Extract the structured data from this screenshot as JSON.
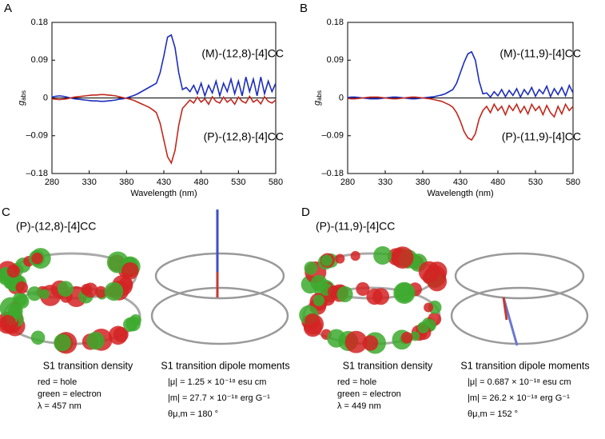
{
  "chart_data": [
    {
      "type": "line",
      "label": "A",
      "xlabel": "Wavelength (nm)",
      "ylabel": "g",
      "ylabel_sub": "abs",
      "xlim": [
        280,
        580
      ],
      "ylim": [
        -0.18,
        0.18
      ],
      "xticks": [
        280,
        330,
        380,
        430,
        480,
        530,
        580
      ],
      "yticks": [
        {
          "value": -0.18,
          "label": "–0.18"
        },
        {
          "value": -0.09,
          "label": "–0.09"
        },
        0,
        0.09,
        0.18
      ],
      "x": [
        280,
        285,
        290,
        295,
        300,
        305,
        310,
        315,
        320,
        325,
        330,
        335,
        340,
        345,
        350,
        355,
        360,
        365,
        370,
        375,
        380,
        385,
        390,
        395,
        400,
        405,
        410,
        415,
        420,
        425,
        430,
        435,
        440,
        445,
        450,
        455,
        460,
        465,
        470,
        475,
        480,
        485,
        490,
        495,
        500,
        505,
        510,
        515,
        520,
        525,
        530,
        535,
        540,
        545,
        550,
        555,
        560,
        565,
        570,
        575,
        580
      ],
      "series": [
        {
          "name": "(M)-(12,8)-[4]CC",
          "color": "#1c2dbd",
          "values": [
            0.002,
            0.004,
            0.005,
            0.004,
            0.002,
            0,
            -0.002,
            -0.003,
            -0.004,
            -0.005,
            -0.006,
            -0.007,
            -0.007,
            -0.008,
            -0.008,
            -0.007,
            -0.006,
            -0.005,
            -0.003,
            -0.002,
            0,
            0.003,
            0.006,
            0.01,
            0.015,
            0.02,
            0.025,
            0.03,
            0.035,
            0.06,
            0.1,
            0.145,
            0.15,
            0.12,
            0.06,
            0.02,
            0.025,
            0.015,
            0.03,
            0.01,
            0.035,
            0.005,
            0.03,
            0.012,
            0.04,
            0.005,
            0.035,
            0.015,
            0.045,
            0.01,
            0.04,
            0.005,
            0.05,
            0.015,
            0.045,
            0.005,
            0.05,
            0.01,
            0.04,
            0.015,
            0.035
          ]
        },
        {
          "name": "(P)-(12,8)-[4]CC",
          "color": "#c1271b",
          "values": [
            -0.002,
            -0.003,
            -0.004,
            -0.003,
            -0.002,
            0,
            0.002,
            0.003,
            0.004,
            0.005,
            0.006,
            0.007,
            0.007,
            0.008,
            0.008,
            0.007,
            0.006,
            0.005,
            0.003,
            0.001,
            -0.001,
            -0.003,
            -0.006,
            -0.01,
            -0.014,
            -0.018,
            -0.022,
            -0.028,
            -0.035,
            -0.06,
            -0.1,
            -0.14,
            -0.155,
            -0.125,
            -0.065,
            -0.025,
            -0.015,
            -0.005,
            -0.012,
            0.002,
            -0.01,
            -0.002,
            -0.015,
            0.003,
            -0.008,
            -0.012,
            0.002,
            -0.01,
            -0.003,
            -0.015,
            0.002,
            -0.008,
            -0.012,
            0.004,
            -0.01,
            -0.004,
            -0.014,
            0.003,
            -0.008,
            -0.012,
            -0.005
          ]
        }
      ]
    },
    {
      "type": "line",
      "label": "B",
      "xlabel": "Wavelength (nm)",
      "ylabel": "g",
      "ylabel_sub": "abs",
      "xlim": [
        280,
        580
      ],
      "ylim": [
        -0.18,
        0.18
      ],
      "xticks": [
        280,
        330,
        380,
        430,
        480,
        530,
        580
      ],
      "yticks": [
        {
          "value": -0.18,
          "label": "–0.18"
        },
        {
          "value": -0.09,
          "label": "–0.09"
        },
        0,
        0.09,
        0.18
      ],
      "x": [
        280,
        285,
        290,
        295,
        300,
        305,
        310,
        315,
        320,
        325,
        330,
        335,
        340,
        345,
        350,
        355,
        360,
        365,
        370,
        375,
        380,
        385,
        390,
        395,
        400,
        405,
        410,
        415,
        420,
        425,
        430,
        435,
        440,
        445,
        450,
        455,
        460,
        465,
        470,
        475,
        480,
        485,
        490,
        495,
        500,
        505,
        510,
        515,
        520,
        525,
        530,
        535,
        540,
        545,
        550,
        555,
        560,
        565,
        570,
        575,
        580
      ],
      "series": [
        {
          "name": "(M)-(11,9)-[4]CC",
          "color": "#1c2dbd",
          "values": [
            0.001,
            0.002,
            0.002,
            0.001,
            0,
            -0.001,
            -0.002,
            -0.002,
            -0.002,
            -0.001,
            0,
            0.001,
            0.002,
            0.002,
            0.001,
            0,
            -0.001,
            -0.002,
            -0.002,
            -0.001,
            0,
            0.001,
            0.002,
            0.003,
            0.005,
            0.007,
            0.01,
            0.015,
            0.02,
            0.035,
            0.06,
            0.085,
            0.105,
            0.11,
            0.09,
            0.04,
            0.01,
            0.012,
            0.002,
            0.015,
            0.005,
            0.02,
            0.003,
            0.018,
            0.006,
            0.022,
            0.002,
            0.02,
            0.008,
            0.025,
            0.004,
            0.02,
            0.01,
            0.028,
            0.003,
            0.022,
            0.008,
            0.025,
            0.005,
            0.03,
            0.012
          ]
        },
        {
          "name": "(P)-(11,9)-[4]CC",
          "color": "#c1271b",
          "values": [
            -0.001,
            -0.002,
            -0.002,
            -0.001,
            0,
            0.001,
            0.002,
            0.002,
            0.002,
            0.001,
            0,
            -0.001,
            -0.002,
            -0.002,
            -0.001,
            0,
            0.001,
            0.002,
            0.002,
            0.001,
            0,
            -0.001,
            -0.002,
            -0.004,
            -0.006,
            -0.008,
            -0.012,
            -0.016,
            -0.022,
            -0.035,
            -0.055,
            -0.08,
            -0.095,
            -0.1,
            -0.085,
            -0.05,
            -0.03,
            -0.02,
            -0.035,
            -0.015,
            -0.03,
            -0.02,
            -0.04,
            -0.018,
            -0.03,
            -0.015,
            -0.035,
            -0.02,
            -0.038,
            -0.015,
            -0.03,
            -0.02,
            -0.04,
            -0.018,
            -0.035,
            -0.045,
            -0.02,
            -0.038,
            -0.015,
            -0.03,
            -0.02
          ]
        }
      ]
    }
  ],
  "panels": [
    {
      "label": "C",
      "title": "(P)-(12,8)-[4]CC",
      "density": {
        "title": "S1 transition density",
        "lines": [
          "red = hole",
          "green = electron",
          "λ = 457 nm"
        ]
      },
      "dipole": {
        "title": "S1 transition dipole moments",
        "lines": [
          "|μ| = 1.25 × 10⁻¹⁸ esu cm",
          "|m| = 27.7 × 10⁻¹⁸ erg G⁻¹",
          "θμ,m = 180 °"
        ]
      }
    },
    {
      "label": "D",
      "title": "(P)-(11,9)-[4]CC",
      "density": {
        "title": "S1 transition density",
        "lines": [
          "red = hole",
          "green = electron",
          "λ = 449 nm"
        ]
      },
      "dipole": {
        "title": "S1 transition dipole moments",
        "lines": [
          "|μ| = 0.687 × 10⁻¹⁸ esu cm",
          "|m| = 26.2 × 10⁻¹⁸ erg G⁻¹",
          "θμ,m = 152 °"
        ]
      }
    }
  ]
}
